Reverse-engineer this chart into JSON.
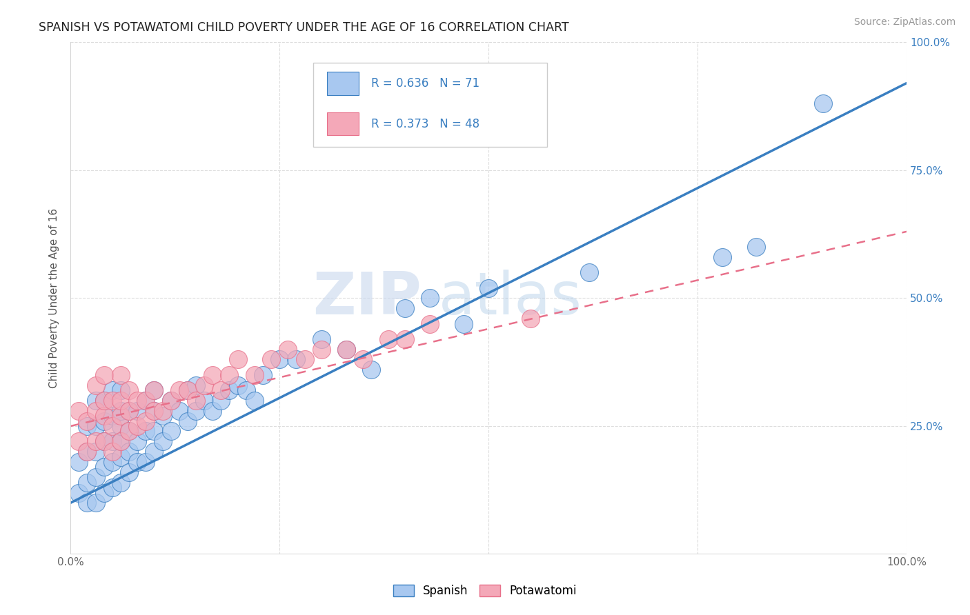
{
  "title": "SPANISH VS POTAWATOMI CHILD POVERTY UNDER THE AGE OF 16 CORRELATION CHART",
  "source": "Source: ZipAtlas.com",
  "ylabel": "Child Poverty Under the Age of 16",
  "xlim": [
    0,
    1
  ],
  "ylim": [
    0,
    1
  ],
  "watermark_zip": "ZIP",
  "watermark_atlas": "atlas",
  "spanish_color": "#a8c8f0",
  "potawatomi_color": "#f4a8b8",
  "spanish_line_color": "#3a7fc1",
  "potawatomi_line_color": "#e8708a",
  "title_color": "#222222",
  "legend_text_color": "#3a7fc1",
  "grid_color": "#dddddd",
  "spanish_line_intercept": 0.1,
  "spanish_line_slope": 0.82,
  "potawatomi_line_intercept": 0.25,
  "potawatomi_line_slope": 0.38,
  "spanish_scatter_x": [
    0.01,
    0.01,
    0.02,
    0.02,
    0.02,
    0.02,
    0.03,
    0.03,
    0.03,
    0.03,
    0.03,
    0.04,
    0.04,
    0.04,
    0.04,
    0.04,
    0.05,
    0.05,
    0.05,
    0.05,
    0.05,
    0.06,
    0.06,
    0.06,
    0.06,
    0.06,
    0.06,
    0.07,
    0.07,
    0.07,
    0.07,
    0.08,
    0.08,
    0.08,
    0.09,
    0.09,
    0.09,
    0.1,
    0.1,
    0.1,
    0.1,
    0.11,
    0.11,
    0.12,
    0.12,
    0.13,
    0.14,
    0.14,
    0.15,
    0.15,
    0.16,
    0.17,
    0.18,
    0.19,
    0.2,
    0.21,
    0.22,
    0.23,
    0.25,
    0.27,
    0.3,
    0.33,
    0.36,
    0.4,
    0.43,
    0.47,
    0.5,
    0.62,
    0.78,
    0.82,
    0.9
  ],
  "spanish_scatter_y": [
    0.12,
    0.18,
    0.1,
    0.14,
    0.2,
    0.25,
    0.1,
    0.15,
    0.2,
    0.25,
    0.3,
    0.12,
    0.17,
    0.22,
    0.26,
    0.3,
    0.13,
    0.18,
    0.22,
    0.27,
    0.32,
    0.14,
    0.19,
    0.22,
    0.25,
    0.28,
    0.32,
    0.16,
    0.2,
    0.24,
    0.28,
    0.18,
    0.22,
    0.28,
    0.18,
    0.24,
    0.3,
    0.2,
    0.24,
    0.28,
    0.32,
    0.22,
    0.27,
    0.24,
    0.3,
    0.28,
    0.26,
    0.32,
    0.28,
    0.33,
    0.3,
    0.28,
    0.3,
    0.32,
    0.33,
    0.32,
    0.3,
    0.35,
    0.38,
    0.38,
    0.42,
    0.4,
    0.36,
    0.48,
    0.5,
    0.45,
    0.52,
    0.55,
    0.58,
    0.6,
    0.88
  ],
  "potawatomi_scatter_x": [
    0.01,
    0.01,
    0.02,
    0.02,
    0.03,
    0.03,
    0.03,
    0.04,
    0.04,
    0.04,
    0.04,
    0.05,
    0.05,
    0.05,
    0.06,
    0.06,
    0.06,
    0.06,
    0.07,
    0.07,
    0.07,
    0.08,
    0.08,
    0.09,
    0.09,
    0.1,
    0.1,
    0.11,
    0.12,
    0.13,
    0.14,
    0.15,
    0.16,
    0.17,
    0.18,
    0.19,
    0.2,
    0.22,
    0.24,
    0.26,
    0.28,
    0.3,
    0.33,
    0.35,
    0.38,
    0.4,
    0.43,
    0.55
  ],
  "potawatomi_scatter_y": [
    0.22,
    0.28,
    0.2,
    0.26,
    0.22,
    0.28,
    0.33,
    0.22,
    0.27,
    0.3,
    0.35,
    0.2,
    0.25,
    0.3,
    0.22,
    0.27,
    0.3,
    0.35,
    0.24,
    0.28,
    0.32,
    0.25,
    0.3,
    0.26,
    0.3,
    0.28,
    0.32,
    0.28,
    0.3,
    0.32,
    0.32,
    0.3,
    0.33,
    0.35,
    0.32,
    0.35,
    0.38,
    0.35,
    0.38,
    0.4,
    0.38,
    0.4,
    0.4,
    0.38,
    0.42,
    0.42,
    0.45,
    0.46
  ]
}
